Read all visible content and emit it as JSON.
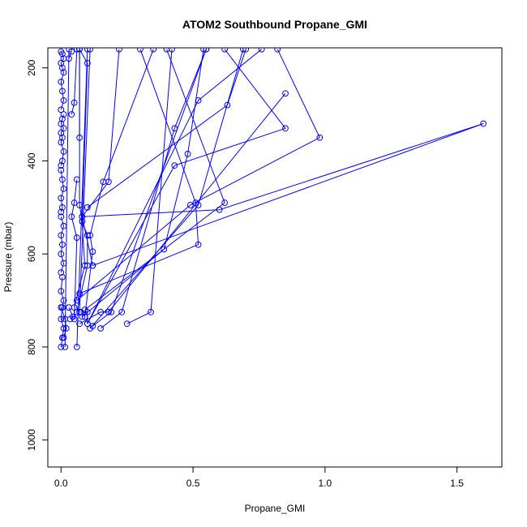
{
  "chart_data": {
    "type": "line",
    "title": "ATOM2 Southbound Propane_GMI",
    "xlabel": "Propane_GMI",
    "ylabel": "Pressure (mbar)",
    "xlim": [
      -0.05,
      1.67
    ],
    "ylim": [
      1058,
      157
    ],
    "y_reversed": true,
    "x_ticks": [
      0.0,
      0.5,
      1.0,
      1.5
    ],
    "x_tick_labels": [
      "0.0",
      "0.5",
      "1.0",
      "1.5"
    ],
    "y_ticks": [
      200,
      400,
      600,
      800,
      1000
    ],
    "y_tick_labels": [
      "200",
      "400",
      "600",
      "800",
      "1000"
    ],
    "grid": false,
    "legend": "none",
    "series_color": "#0000ff",
    "marker": "open-circle",
    "series": [
      {
        "x": [
          0.0,
          0.005,
          0.01,
          0.0,
          0.005,
          0.01,
          0.0,
          0.005
        ],
        "y": [
          800,
          780,
          760,
          740,
          715,
          700,
          680,
          650
        ]
      },
      {
        "x": [
          0.0,
          0.01,
          0.0,
          0.005,
          0.0,
          0.01,
          0.0
        ],
        "y": [
          640,
          620,
          600,
          580,
          560,
          540,
          520
        ]
      },
      {
        "x": [
          0.0,
          0.005,
          0.0,
          0.01,
          0.005,
          0.0
        ],
        "y": [
          510,
          500,
          480,
          460,
          440,
          420
        ]
      },
      {
        "x": [
          0.0,
          0.005,
          0.01,
          0.0,
          0.005,
          0.0,
          0.01,
          0.0,
          0.005,
          0.01
        ],
        "y": [
          410,
          400,
          380,
          360,
          350,
          340,
          330,
          320,
          310,
          300
        ]
      },
      {
        "x": [
          0.0,
          0.01,
          0.005,
          0.0,
          0.01,
          0.005,
          0.0,
          0.01,
          0.005,
          0.0
        ],
        "y": [
          290,
          270,
          250,
          230,
          210,
          200,
          190,
          180,
          170,
          165
        ]
      },
      {
        "x": [
          0.015,
          0.03
        ],
        "y": [
          800,
          160
        ]
      },
      {
        "x": [
          0.06,
          0.1
        ],
        "y": [
          800,
          160
        ]
      },
      {
        "x": [
          0.01,
          0.02,
          0.015,
          0.0
        ],
        "y": [
          780,
          760,
          740,
          715
        ]
      },
      {
        "x": [
          0.035,
          0.045,
          0.03
        ],
        "y": [
          740,
          735,
          715
        ]
      },
      {
        "x": [
          0.07,
          0.15,
          0.18,
          0.85
        ],
        "y": [
          750,
          725,
          725,
          255
        ]
      },
      {
        "x": [
          0.075,
          0.1,
          0.1,
          0.52,
          0.76
        ],
        "y": [
          725,
          725,
          750,
          270,
          160
        ]
      },
      {
        "x": [
          0.15,
          0.23,
          0.43,
          0.55
        ],
        "y": [
          760,
          725,
          330,
          160
        ]
      },
      {
        "x": [
          0.25,
          0.34,
          0.42
        ],
        "y": [
          750,
          725,
          160
        ]
      },
      {
        "x": [
          0.07,
          0.11
        ],
        "y": [
          725,
          160
        ]
      },
      {
        "x": [
          0.12,
          0.19,
          0.55
        ],
        "y": [
          755,
          725,
          160
        ]
      },
      {
        "x": [
          0.1,
          0.43,
          0.85,
          0.62
        ],
        "y": [
          750,
          410,
          330,
          160
        ]
      },
      {
        "x": [
          0.08,
          0.39,
          0.48,
          0.54
        ],
        "y": [
          735,
          590,
          385,
          160
        ]
      },
      {
        "x": [
          0.09,
          0.12,
          0.11,
          0.16,
          0.35
        ],
        "y": [
          735,
          595,
          560,
          445,
          160
        ]
      },
      {
        "x": [
          0.05,
          0.09,
          0.08,
          0.07,
          0.07
        ],
        "y": [
          715,
          625,
          530,
          495,
          160
        ]
      },
      {
        "x": [
          0.06,
          0.1,
          0.1,
          0.08,
          0.1,
          0.07,
          0.07
        ],
        "y": [
          725,
          625,
          560,
          530,
          190,
          160,
          350
        ]
      },
      {
        "x": [
          0.07,
          0.52,
          0.51,
          0.3
        ],
        "y": [
          685,
          580,
          490,
          160
        ]
      },
      {
        "x": [
          0.12,
          1.6,
          0.6,
          0.08,
          0.12
        ],
        "y": [
          625,
          320,
          505,
          520,
          625
        ]
      },
      {
        "x": [
          0.05,
          0.06,
          0.04,
          0.05,
          0.06
        ],
        "y": [
          740,
          565,
          520,
          490,
          440
        ]
      },
      {
        "x": [
          0.04,
          0.05,
          0.06
        ],
        "y": [
          300,
          275,
          160
        ]
      },
      {
        "x": [
          0.03,
          0.04
        ],
        "y": [
          180,
          165
        ]
      },
      {
        "x": [
          0.08,
          0.18,
          0.22
        ],
        "y": [
          520,
          445,
          160
        ]
      },
      {
        "x": [
          0.1,
          0.63,
          0.7
        ],
        "y": [
          500,
          280,
          160
        ]
      },
      {
        "x": [
          0.06,
          0.49,
          0.98,
          0.82
        ],
        "y": [
          700,
          495,
          350,
          160
        ]
      },
      {
        "x": [
          0.09,
          0.62,
          0.4
        ],
        "y": [
          720,
          490,
          160
        ]
      },
      {
        "x": [
          0.11,
          0.52,
          0.69
        ],
        "y": [
          760,
          495,
          160
        ]
      }
    ]
  }
}
